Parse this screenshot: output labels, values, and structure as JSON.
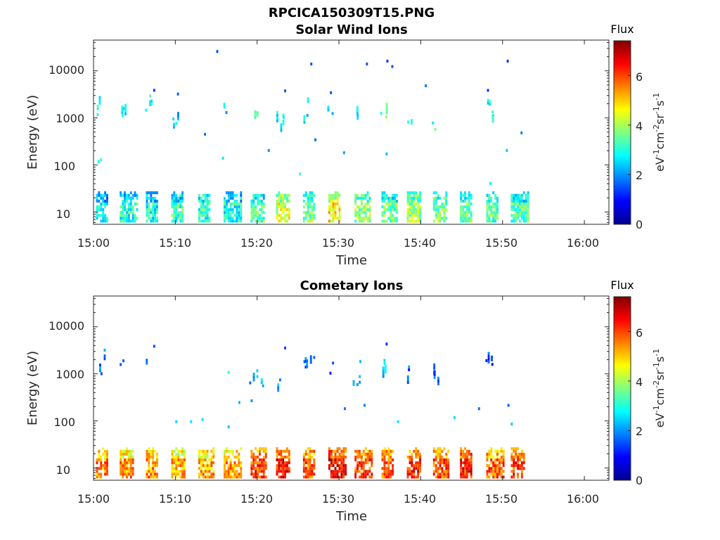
{
  "figure_title": "RPCICA150309T15.PNG",
  "chart_data": [
    {
      "type": "heatmap",
      "title": "Solar Wind Ions",
      "xlabel": "Time",
      "ylabel": "Energy (eV)",
      "x_ticks": [
        "15:00",
        "15:10",
        "15:20",
        "15:30",
        "15:40",
        "15:50",
        "16:00"
      ],
      "x_range_minutes_after": [
        0,
        63
      ],
      "y_scale": "log",
      "y_ticks": [
        "10",
        "100",
        "1000",
        "10000"
      ],
      "ylim": [
        5.5,
        45000
      ],
      "colorbar": {
        "title": "Flux",
        "label": "eV-1cm-2sr-1s-1",
        "ticks": [
          "0",
          "2",
          "4",
          "6"
        ],
        "range": [
          0,
          7.4
        ],
        "colormap": "jet"
      },
      "grid": false,
      "bursts_minute": [
        0.3,
        3.2,
        6.4,
        9.5,
        12.8,
        15.9,
        19.2,
        22.3,
        25.6,
        28.7,
        31.9,
        35.2,
        38.3,
        41.5,
        44.8,
        48.0,
        51.0
      ],
      "bursts_low_flux": [
        2.8,
        3.0,
        2.9,
        3.1,
        3.2,
        3.0,
        3.4,
        4.3,
        3.6,
        4.8,
        3.8,
        3.5,
        3.9,
        3.7,
        3.6,
        3.3,
        3.4
      ],
      "bursts_high_energy_eV": [
        1600,
        1700,
        1700,
        800,
        0,
        1600,
        900,
        800,
        1300,
        1400,
        900,
        1000,
        900,
        800,
        0,
        1500,
        0
      ],
      "bursts_high_flux": [
        3.0,
        2.6,
        2.8,
        2.4,
        0,
        2.4,
        3.2,
        2.8,
        2.6,
        2.6,
        2.4,
        3.4,
        3.1,
        3.0,
        0,
        2.8,
        0
      ],
      "scatter": [
        {
          "t": 15.0,
          "e": 24000,
          "v": 1.5
        },
        {
          "t": 26.5,
          "e": 13000,
          "v": 1.5
        },
        {
          "t": 33.3,
          "e": 13000,
          "v": 1.5
        },
        {
          "t": 35.8,
          "e": 15000,
          "v": 1.3
        },
        {
          "t": 36.4,
          "e": 11500,
          "v": 1.5
        },
        {
          "t": 50.5,
          "e": 15000,
          "v": 1.3
        },
        {
          "t": 40.5,
          "e": 4500,
          "v": 1.8
        },
        {
          "t": 23.3,
          "e": 3500,
          "v": 1.5
        },
        {
          "t": 7.3,
          "e": 3600,
          "v": 1.3
        },
        {
          "t": 10.2,
          "e": 3000,
          "v": 1.6
        },
        {
          "t": 28.9,
          "e": 3200,
          "v": 1.5
        },
        {
          "t": 48.1,
          "e": 3600,
          "v": 1.3
        },
        {
          "t": 13.5,
          "e": 420,
          "v": 1.8
        },
        {
          "t": 15.7,
          "e": 130,
          "v": 2.6
        },
        {
          "t": 30.5,
          "e": 170,
          "v": 2.1
        },
        {
          "t": 35.7,
          "e": 160,
          "v": 2.3
        },
        {
          "t": 50.4,
          "e": 190,
          "v": 2.4
        },
        {
          "t": 52.2,
          "e": 450,
          "v": 1.8
        },
        {
          "t": 0.5,
          "e": 110,
          "v": 2.9
        },
        {
          "t": 0.8,
          "e": 120,
          "v": 3.0
        },
        {
          "t": 25.1,
          "e": 60,
          "v": 3.2
        },
        {
          "t": 48.4,
          "e": 38,
          "v": 2.7
        },
        {
          "t": 21.3,
          "e": 190,
          "v": 2.0
        },
        {
          "t": 27.0,
          "e": 320,
          "v": 1.7
        }
      ]
    },
    {
      "type": "heatmap",
      "title": "Cometary Ions",
      "xlabel": "Time",
      "ylabel": "Energy (eV)",
      "x_ticks": [
        "15:00",
        "15:10",
        "15:20",
        "15:30",
        "15:40",
        "15:50",
        "16:00"
      ],
      "x_range_minutes_after": [
        0,
        63
      ],
      "y_scale": "log",
      "y_ticks": [
        "10",
        "100",
        "1000",
        "10000"
      ],
      "ylim": [
        5.5,
        45000
      ],
      "colorbar": {
        "title": "Flux",
        "label": "eV-1cm-2sr-1s-1",
        "ticks": [
          "0",
          "2",
          "4",
          "6"
        ],
        "range": [
          0,
          7.4
        ],
        "colormap": "jet"
      },
      "grid": false,
      "bursts_minute": [
        0.3,
        3.2,
        6.4,
        9.5,
        12.8,
        15.9,
        19.2,
        22.3,
        25.6,
        28.7,
        31.9,
        35.2,
        38.3,
        41.5,
        44.8,
        48.0,
        51.0
      ],
      "bursts_low_flux": [
        5.6,
        5.4,
        5.5,
        5.2,
        5.3,
        5.4,
        6.0,
        6.4,
        5.9,
        6.5,
        6.0,
        5.8,
        6.2,
        6.0,
        6.3,
        5.8,
        6.1
      ],
      "bursts_high_energy_eV": [
        1700,
        1700,
        1700,
        0,
        0,
        0,
        900,
        600,
        1700,
        1500,
        700,
        1300,
        1000,
        900,
        0,
        1600,
        0
      ],
      "bursts_high_flux": [
        1.8,
        1.4,
        1.6,
        0,
        0,
        0,
        2.2,
        2.0,
        1.6,
        1.5,
        2.2,
        2.4,
        1.6,
        1.7,
        0,
        1.4,
        0
      ],
      "scatter": [
        {
          "t": 7.3,
          "e": 3600,
          "v": 1.5
        },
        {
          "t": 23.3,
          "e": 3300,
          "v": 1.4
        },
        {
          "t": 35.7,
          "e": 4000,
          "v": 1.2
        },
        {
          "t": 10.0,
          "e": 90,
          "v": 2.5
        },
        {
          "t": 11.8,
          "e": 90,
          "v": 2.6
        },
        {
          "t": 13.2,
          "e": 100,
          "v": 2.6
        },
        {
          "t": 16.4,
          "e": 70,
          "v": 2.4
        },
        {
          "t": 17.7,
          "e": 230,
          "v": 2.2
        },
        {
          "t": 19.2,
          "e": 250,
          "v": 2.0
        },
        {
          "t": 20.6,
          "e": 520,
          "v": 2.1
        },
        {
          "t": 30.6,
          "e": 170,
          "v": 1.8
        },
        {
          "t": 33.0,
          "e": 200,
          "v": 1.9
        },
        {
          "t": 37.1,
          "e": 90,
          "v": 2.6
        },
        {
          "t": 44.0,
          "e": 110,
          "v": 2.5
        },
        {
          "t": 47.0,
          "e": 170,
          "v": 1.7
        },
        {
          "t": 50.6,
          "e": 200,
          "v": 1.6
        },
        {
          "t": 51.0,
          "e": 80,
          "v": 2.4
        },
        {
          "t": 16.4,
          "e": 1000,
          "v": 3.0
        },
        {
          "t": 32.5,
          "e": 1700,
          "v": 2.3
        }
      ]
    }
  ]
}
